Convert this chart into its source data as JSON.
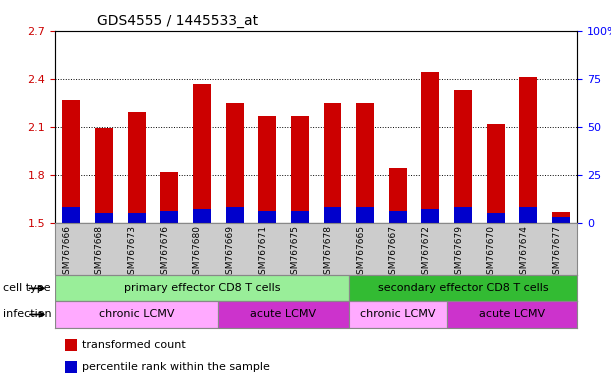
{
  "title": "GDS4555 / 1445533_at",
  "samples": [
    "GSM767666",
    "GSM767668",
    "GSM767673",
    "GSM767676",
    "GSM767680",
    "GSM767669",
    "GSM767671",
    "GSM767675",
    "GSM767678",
    "GSM767665",
    "GSM767667",
    "GSM767672",
    "GSM767679",
    "GSM767670",
    "GSM767674",
    "GSM767677"
  ],
  "transformed_counts": [
    2.27,
    2.09,
    2.19,
    1.82,
    2.37,
    2.25,
    2.17,
    2.17,
    2.25,
    2.25,
    1.84,
    2.44,
    2.33,
    2.12,
    2.41,
    1.57
  ],
  "percentile_ranks": [
    8,
    5,
    5,
    6,
    7,
    8,
    6,
    6,
    8,
    8,
    6,
    7,
    8,
    5,
    8,
    3
  ],
  "ylim_left": [
    1.5,
    2.7
  ],
  "ylim_right": [
    0,
    100
  ],
  "yticks_left": [
    1.5,
    1.8,
    2.1,
    2.4,
    2.7
  ],
  "yticks_right": [
    0,
    25,
    50,
    75,
    100
  ],
  "bar_bottom": 1.5,
  "red_color": "#cc0000",
  "blue_color": "#0000cc",
  "cell_type_groups": [
    {
      "label": "primary effector CD8 T cells",
      "start": 0,
      "end": 9,
      "color": "#99ee99"
    },
    {
      "label": "secondary effector CD8 T cells",
      "start": 9,
      "end": 16,
      "color": "#33bb33"
    }
  ],
  "infection_groups": [
    {
      "label": "chronic LCMV",
      "start": 0,
      "end": 5,
      "color": "#ffaaff"
    },
    {
      "label": "acute LCMV",
      "start": 5,
      "end": 9,
      "color": "#cc33cc"
    },
    {
      "label": "chronic LCMV",
      "start": 9,
      "end": 12,
      "color": "#ffaaff"
    },
    {
      "label": "acute LCMV",
      "start": 12,
      "end": 16,
      "color": "#cc33cc"
    }
  ],
  "legend_items": [
    {
      "label": "transformed count",
      "color": "#cc0000"
    },
    {
      "label": "percentile rank within the sample",
      "color": "#0000cc"
    }
  ],
  "cell_type_label": "cell type",
  "infection_label": "infection",
  "bg_color": "#cccccc",
  "spine_color": "#aaaaaa"
}
